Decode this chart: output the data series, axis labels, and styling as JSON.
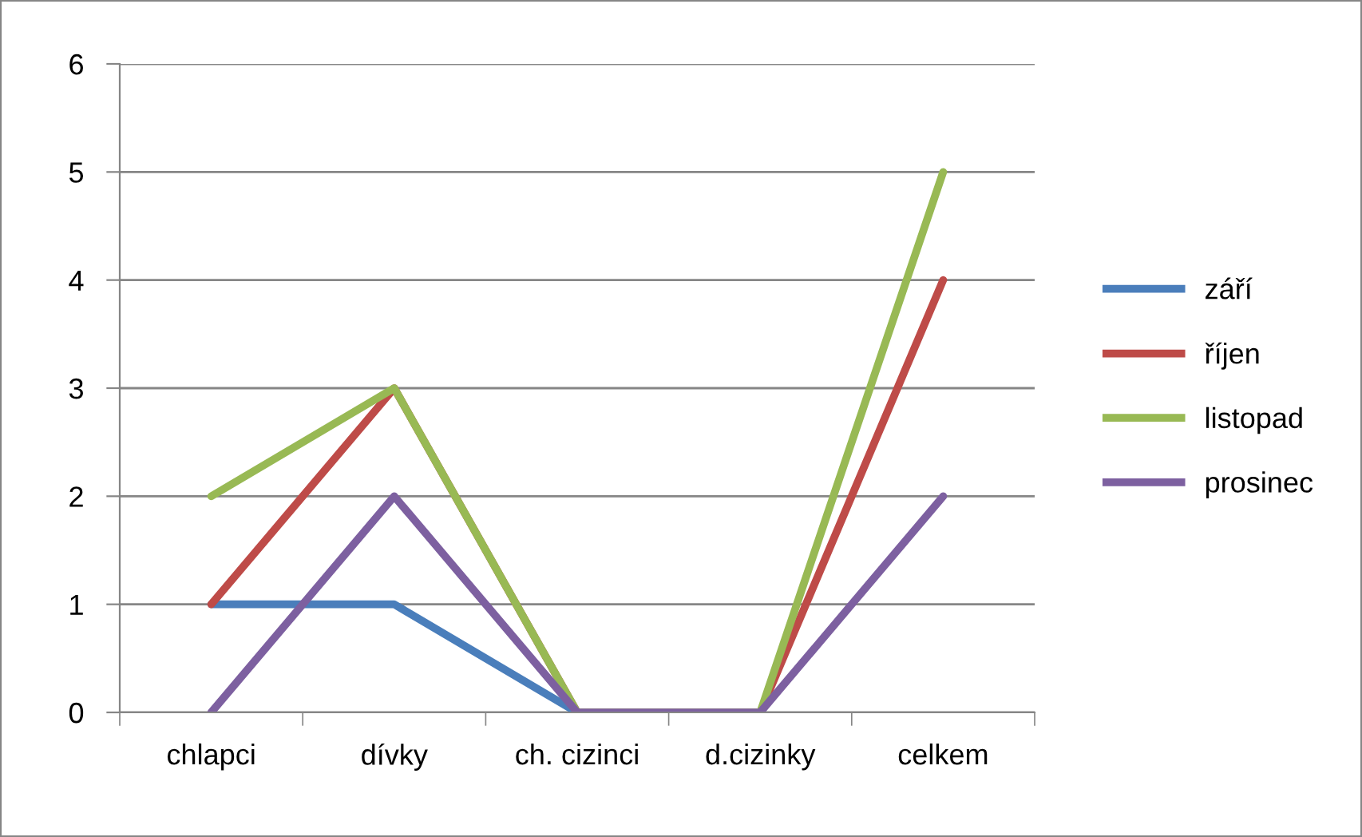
{
  "chart_data": {
    "type": "line",
    "categories": [
      "chlapci",
      "dívky",
      "ch. cizinci",
      "d.cizinky",
      "celkem"
    ],
    "series": [
      {
        "name": "září",
        "color": "#4a7ebb",
        "values": [
          1,
          1,
          0,
          0,
          null
        ]
      },
      {
        "name": "říjen",
        "color": "#be4b48",
        "values": [
          1,
          3,
          0,
          0,
          4
        ]
      },
      {
        "name": "listopad",
        "color": "#98b954",
        "values": [
          2,
          3,
          0,
          0,
          5
        ]
      },
      {
        "name": "prosinec",
        "color": "#7d60a0",
        "values": [
          0,
          2,
          0,
          0,
          2
        ]
      }
    ],
    "ylim": [
      0,
      6
    ],
    "yticks": [
      0,
      1,
      2,
      3,
      4,
      5,
      6
    ],
    "grid": "y",
    "legend": "right",
    "marker": "none",
    "line_style": "solid"
  }
}
